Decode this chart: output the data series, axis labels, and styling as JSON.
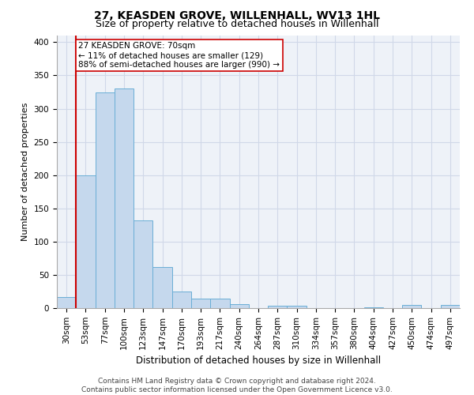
{
  "title": "27, KEASDEN GROVE, WILLENHALL, WV13 1HL",
  "subtitle": "Size of property relative to detached houses in Willenhall",
  "xlabel": "Distribution of detached houses by size in Willenhall",
  "ylabel": "Number of detached properties",
  "footer_line1": "Contains HM Land Registry data © Crown copyright and database right 2024.",
  "footer_line2": "Contains public sector information licensed under the Open Government Licence v3.0.",
  "bin_labels": [
    "30sqm",
    "53sqm",
    "77sqm",
    "100sqm",
    "123sqm",
    "147sqm",
    "170sqm",
    "193sqm",
    "217sqm",
    "240sqm",
    "264sqm",
    "287sqm",
    "310sqm",
    "334sqm",
    "357sqm",
    "380sqm",
    "404sqm",
    "427sqm",
    "450sqm",
    "474sqm",
    "497sqm"
  ],
  "bar_values": [
    17,
    200,
    325,
    330,
    132,
    62,
    25,
    14,
    14,
    6,
    0,
    4,
    4,
    0,
    0,
    0,
    1,
    0,
    5,
    0,
    5
  ],
  "bar_color": "#c5d8ed",
  "bar_edge_color": "#6aaed6",
  "grid_color": "#d0d8e8",
  "background_color": "#eef2f8",
  "property_bin_index": 1,
  "vline_color": "#cc0000",
  "annotation_text": "27 KEASDEN GROVE: 70sqm\n← 11% of detached houses are smaller (129)\n88% of semi-detached houses are larger (990) →",
  "annotation_box_color": "#ffffff",
  "annotation_box_edge": "#cc0000",
  "ylim": [
    0,
    410
  ],
  "yticks": [
    0,
    50,
    100,
    150,
    200,
    250,
    300,
    350,
    400
  ],
  "title_fontsize": 10,
  "subtitle_fontsize": 9,
  "xlabel_fontsize": 8.5,
  "ylabel_fontsize": 8,
  "tick_fontsize": 7.5,
  "annotation_fontsize": 7.5,
  "footer_fontsize": 6.5
}
